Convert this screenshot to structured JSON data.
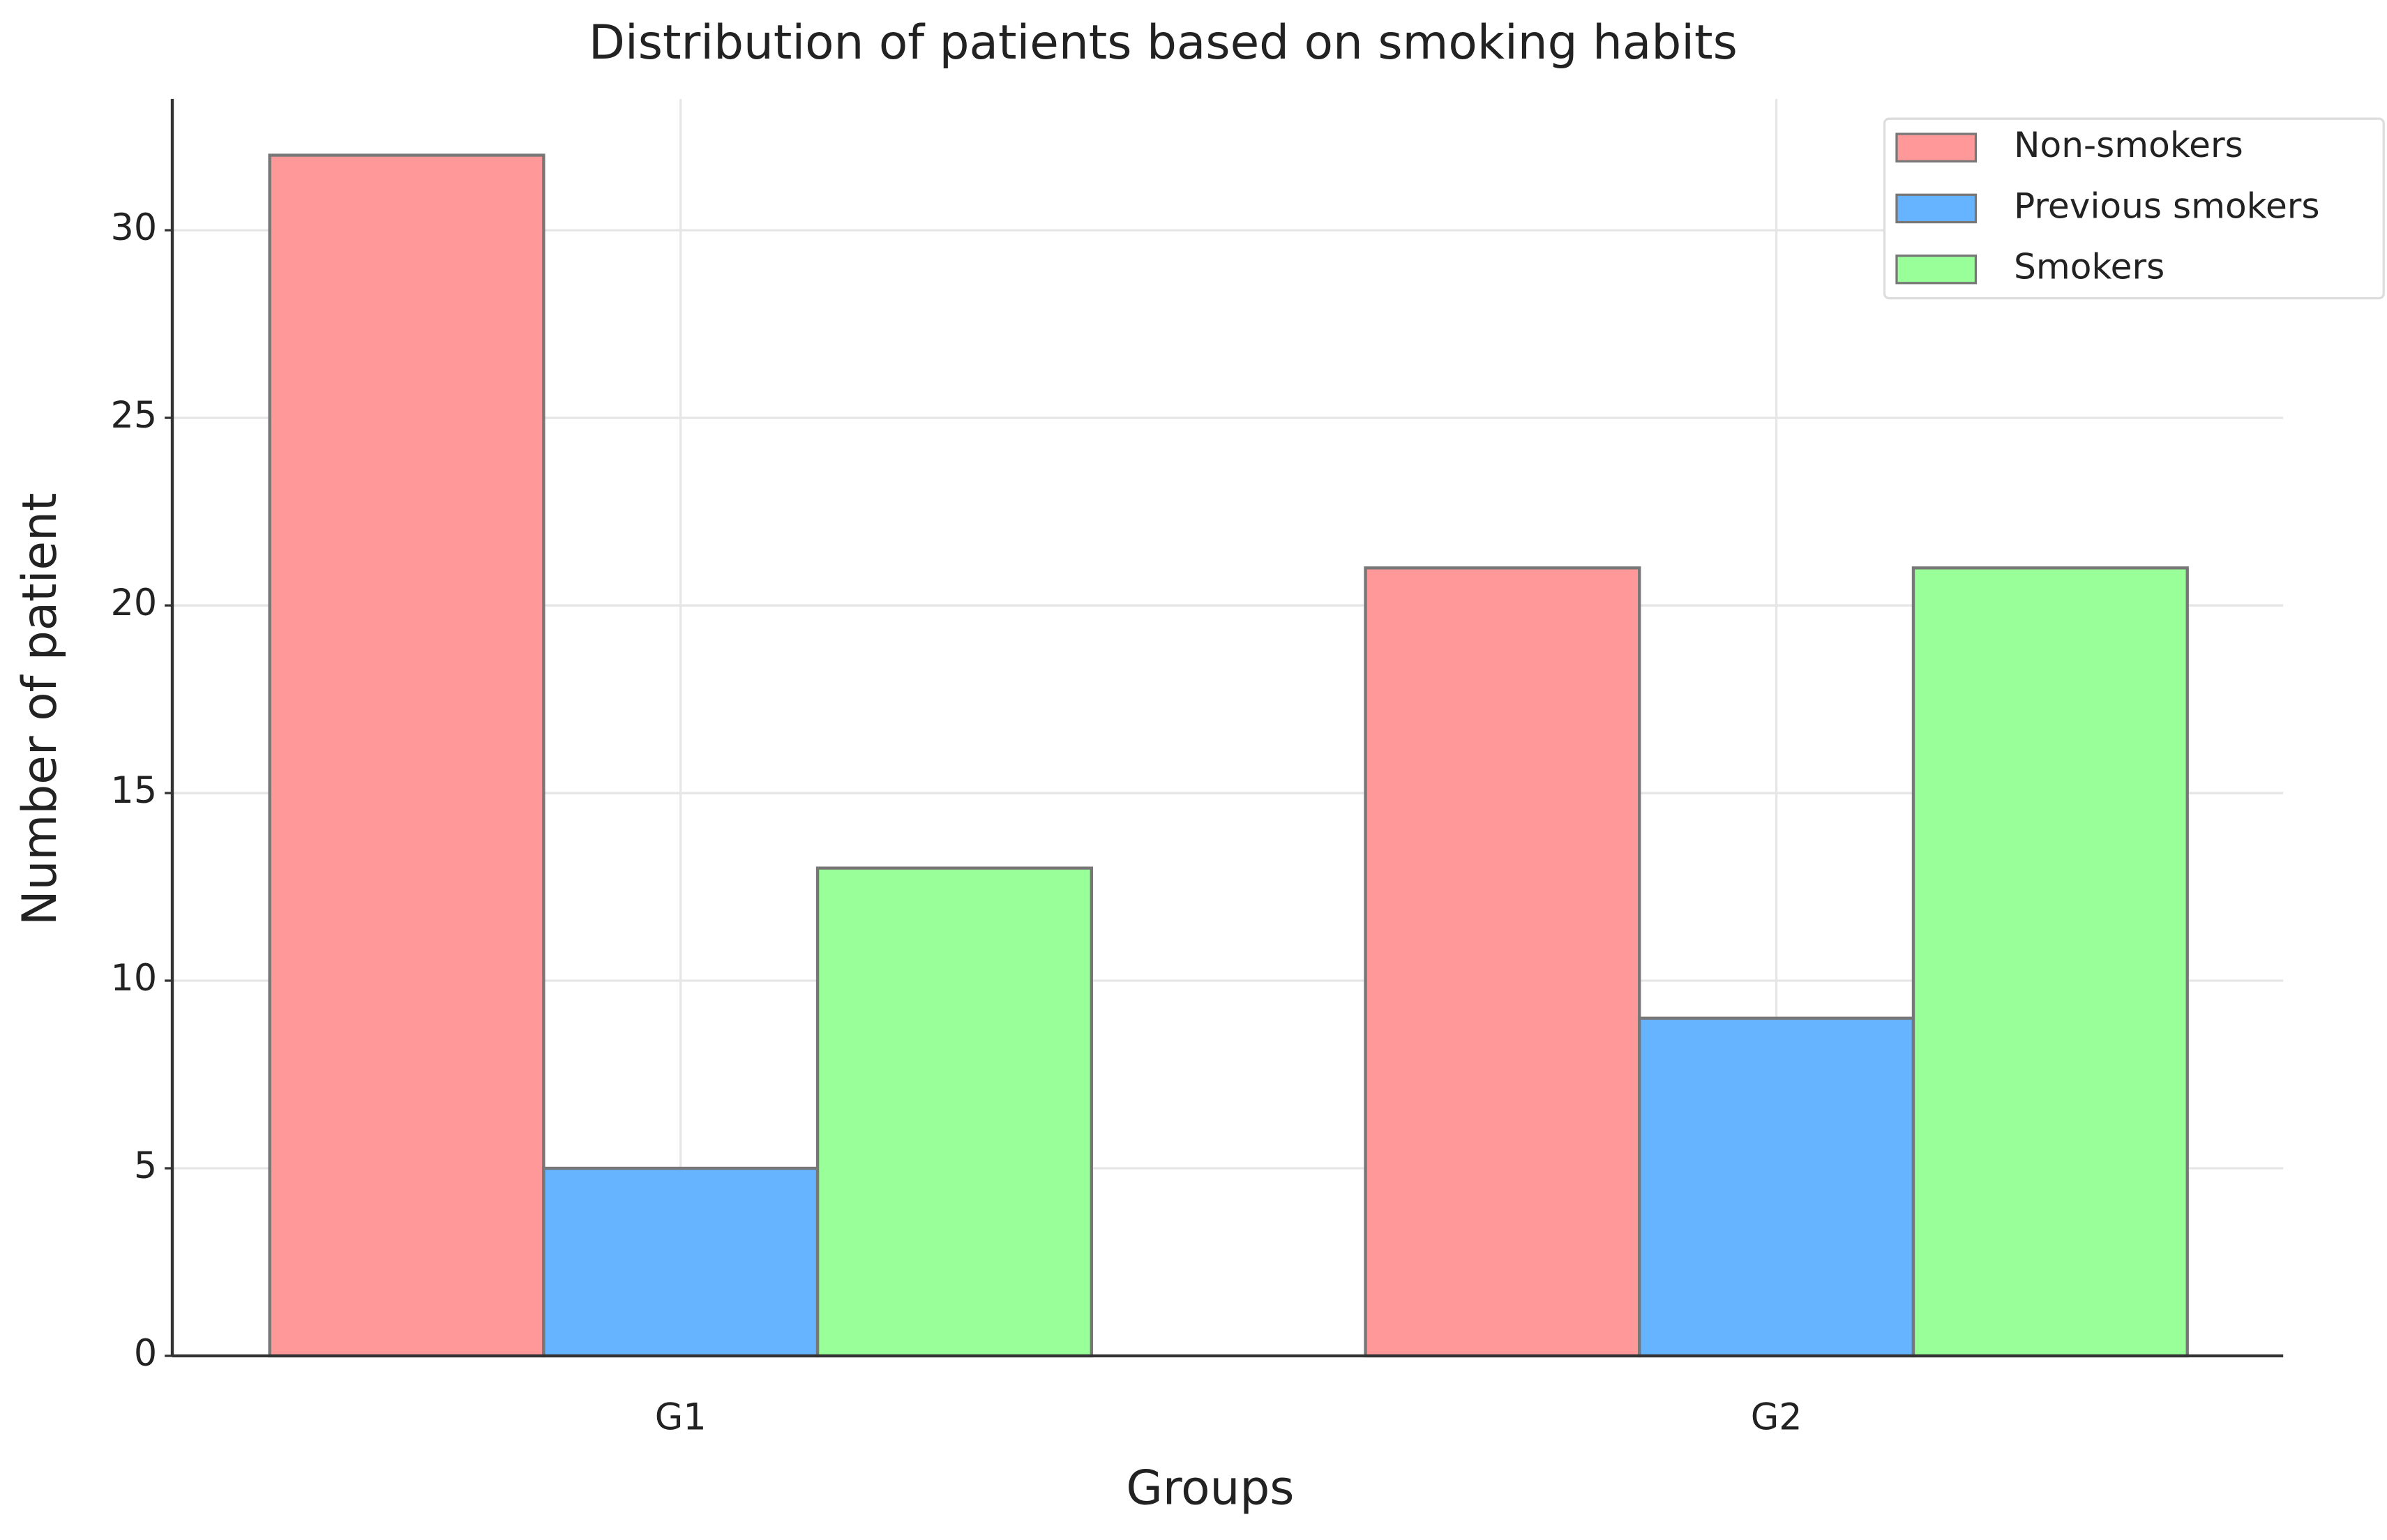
{
  "chart_data": {
    "type": "bar",
    "title": "Distribution of patients based on smoking habits",
    "x_label": "Groups",
    "y_label": "Number of patient",
    "categories": [
      "G1",
      "G2"
    ],
    "series": [
      {
        "name": "Non-smokers",
        "color": "#ff9999",
        "values": [
          32,
          21
        ]
      },
      {
        "name": "Previous smokers",
        "color": "#66b3ff",
        "values": [
          5,
          9
        ]
      },
      {
        "name": "Smokers",
        "color": "#99ff99",
        "values": [
          13,
          21
        ]
      }
    ],
    "ylim": [
      0,
      33.5
    ],
    "yticks": [
      0,
      5,
      10,
      15,
      20,
      25,
      30
    ],
    "grid": true,
    "legend": "upper right"
  }
}
